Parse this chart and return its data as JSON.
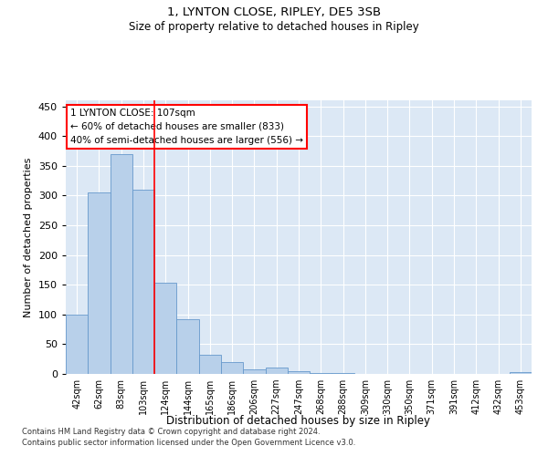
{
  "title1": "1, LYNTON CLOSE, RIPLEY, DE5 3SB",
  "title2": "Size of property relative to detached houses in Ripley",
  "xlabel": "Distribution of detached houses by size in Ripley",
  "ylabel": "Number of detached properties",
  "categories": [
    "42sqm",
    "62sqm",
    "83sqm",
    "103sqm",
    "124sqm",
    "144sqm",
    "165sqm",
    "186sqm",
    "206sqm",
    "227sqm",
    "247sqm",
    "268sqm",
    "288sqm",
    "309sqm",
    "330sqm",
    "350sqm",
    "371sqm",
    "391sqm",
    "412sqm",
    "432sqm",
    "453sqm"
  ],
  "values": [
    100,
    305,
    370,
    310,
    153,
    92,
    32,
    20,
    8,
    10,
    5,
    2,
    1,
    0,
    0,
    0,
    0,
    0,
    0,
    0,
    3
  ],
  "bar_color": "#b8d0ea",
  "bar_edge_color": "#6699cc",
  "vline_x": 3.5,
  "vline_color": "red",
  "annotation_title": "1 LYNTON CLOSE: 107sqm",
  "annotation_line1": "← 60% of detached houses are smaller (833)",
  "annotation_line2": "40% of semi-detached houses are larger (556) →",
  "annotation_box_color": "white",
  "annotation_box_edge": "red",
  "ylim": [
    0,
    460
  ],
  "yticks": [
    0,
    50,
    100,
    150,
    200,
    250,
    300,
    350,
    400,
    450
  ],
  "footer1": "Contains HM Land Registry data © Crown copyright and database right 2024.",
  "footer2": "Contains public sector information licensed under the Open Government Licence v3.0.",
  "bg_color": "#dce8f5",
  "fig_bg_color": "#ffffff"
}
